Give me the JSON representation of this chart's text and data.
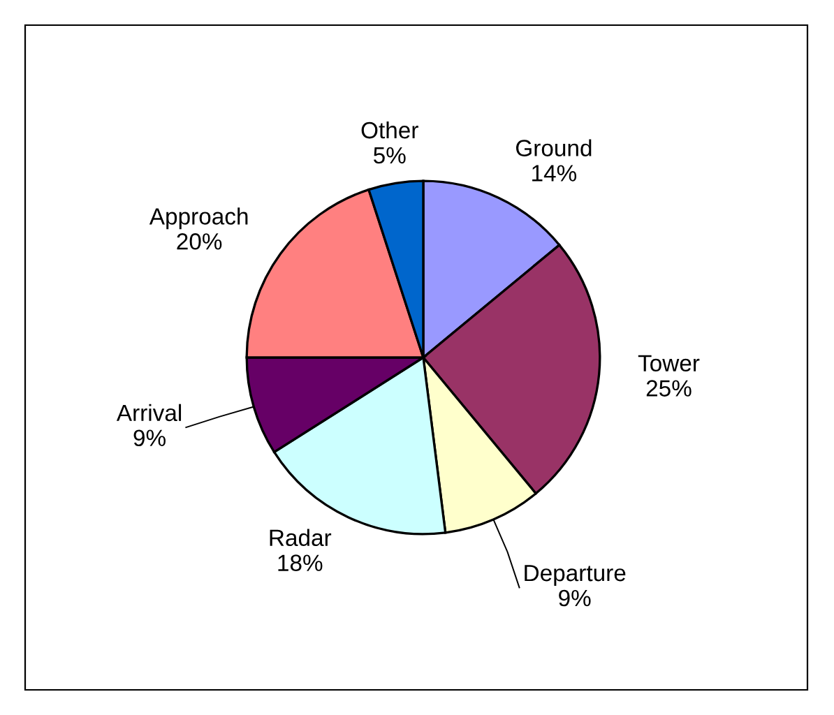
{
  "chart_data": {
    "type": "pie",
    "categories": [
      "Ground",
      "Tower",
      "Departure",
      "Radar",
      "Arrival",
      "Approach",
      "Other"
    ],
    "values": [
      14,
      25,
      9,
      18,
      9,
      20,
      5
    ],
    "colors": [
      "#9999ff",
      "#993366",
      "#ffffcc",
      "#ccffff",
      "#660066",
      "#ff8080",
      "#0066cc"
    ],
    "value_labels": [
      "14%",
      "25%",
      "9%",
      "18%",
      "9%",
      "20%",
      "5%"
    ]
  }
}
